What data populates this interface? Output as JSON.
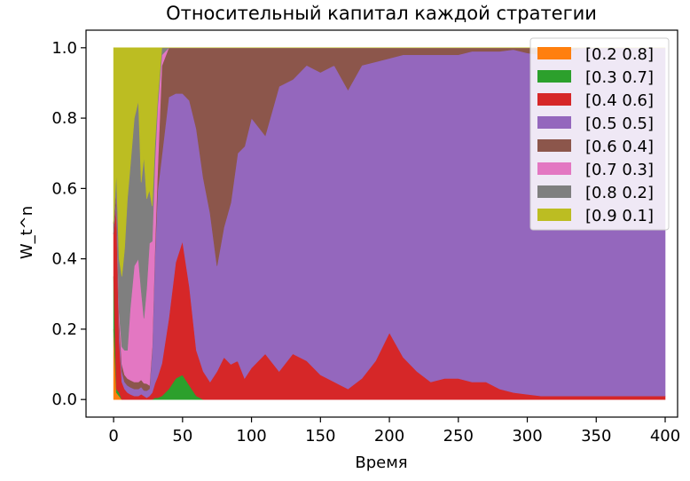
{
  "chart_data": {
    "type": "area",
    "stacked": true,
    "normalized": true,
    "title": "Относительный капитал каждой стратегии",
    "xlabel": "Время",
    "ylabel": "W_t^n",
    "xlim": [
      -20,
      409
    ],
    "ylim": [
      -0.05,
      1.05
    ],
    "xticks": [
      0,
      50,
      100,
      150,
      200,
      250,
      300,
      350,
      400
    ],
    "yticks": [
      0.0,
      0.2,
      0.4,
      0.6,
      0.8,
      1.0
    ],
    "ytick_labels": [
      "0.0",
      "0.2",
      "0.4",
      "0.6",
      "0.8",
      "1.0"
    ],
    "legend_position": "upper right",
    "x": [
      0,
      2,
      4,
      6,
      8,
      10,
      12,
      15,
      18,
      20,
      22,
      24,
      26,
      28,
      30,
      32,
      35,
      40,
      45,
      50,
      55,
      60,
      65,
      70,
      75,
      80,
      85,
      90,
      95,
      100,
      110,
      120,
      130,
      140,
      150,
      160,
      170,
      180,
      190,
      200,
      210,
      220,
      230,
      240,
      250,
      260,
      270,
      280,
      290,
      300,
      310,
      320,
      330,
      340,
      350,
      360,
      370,
      380,
      390,
      400
    ],
    "series": [
      {
        "name": "[0.2 0.8]",
        "color": "#ff7f0e",
        "values": [
          0.2,
          0.02,
          0.01,
          0,
          0,
          0,
          0,
          0,
          0,
          0,
          0,
          0,
          0,
          0,
          0,
          0,
          0,
          0,
          0,
          0,
          0,
          0,
          0,
          0,
          0,
          0,
          0,
          0,
          0,
          0,
          0,
          0,
          0,
          0,
          0,
          0,
          0,
          0,
          0,
          0,
          0,
          0,
          0,
          0,
          0,
          0,
          0,
          0,
          0,
          0,
          0,
          0,
          0,
          0,
          0,
          0,
          0,
          0,
          0,
          0
        ]
      },
      {
        "name": "[0.3 0.7]",
        "color": "#2ca02c",
        "values": [
          0.15,
          0.01,
          0.01,
          0,
          0,
          0,
          0,
          0,
          0,
          0,
          0,
          0,
          0,
          0,
          0.005,
          0.005,
          0.01,
          0.03,
          0.06,
          0.07,
          0.04,
          0.01,
          0,
          0,
          0,
          0,
          0,
          0,
          0,
          0,
          0,
          0,
          0,
          0,
          0,
          0,
          0,
          0,
          0,
          0,
          0,
          0,
          0,
          0,
          0,
          0,
          0,
          0,
          0,
          0,
          0,
          0,
          0,
          0,
          0,
          0,
          0,
          0,
          0,
          0
        ]
      },
      {
        "name": "[0.4 0.6]",
        "color": "#d62728",
        "values": [
          0.12,
          0.52,
          0.15,
          0.05,
          0.03,
          0.02,
          0.015,
          0.01,
          0.01,
          0.015,
          0.01,
          0.005,
          0.01,
          0.02,
          0.04,
          0.06,
          0.09,
          0.2,
          0.33,
          0.38,
          0.28,
          0.13,
          0.08,
          0.05,
          0.08,
          0.12,
          0.1,
          0.11,
          0.06,
          0.09,
          0.13,
          0.08,
          0.13,
          0.11,
          0.07,
          0.05,
          0.03,
          0.06,
          0.11,
          0.19,
          0.12,
          0.08,
          0.05,
          0.06,
          0.06,
          0.05,
          0.05,
          0.03,
          0.02,
          0.015,
          0.01,
          0.01,
          0.01,
          0.01,
          0.01,
          0.01,
          0.01,
          0.01,
          0.01,
          0.01
        ]
      },
      {
        "name": "[0.5 0.5]",
        "color": "#9467bd",
        "values": [
          0.0,
          0.02,
          0.03,
          0.03,
          0.02,
          0.02,
          0.02,
          0.02,
          0.02,
          0.02,
          0.015,
          0.02,
          0.02,
          0.12,
          0.36,
          0.53,
          0.58,
          0.63,
          0.48,
          0.42,
          0.53,
          0.63,
          0.55,
          0.48,
          0.3,
          0.37,
          0.46,
          0.59,
          0.66,
          0.71,
          0.62,
          0.81,
          0.78,
          0.84,
          0.86,
          0.9,
          0.85,
          0.89,
          0.85,
          0.78,
          0.86,
          0.9,
          0.93,
          0.92,
          0.92,
          0.94,
          0.94,
          0.96,
          0.975,
          0.975,
          0.97,
          0.98,
          0.98,
          0.99,
          0.99,
          0.99,
          0.99,
          0.99,
          0.99,
          0.99
        ]
      },
      {
        "name": "[0.6 0.4]",
        "color": "#8c564b",
        "values": [
          0.03,
          0.03,
          0.03,
          0.02,
          0.02,
          0.02,
          0.02,
          0.02,
          0.02,
          0.02,
          0.02,
          0.02,
          0.01,
          0.01,
          0.02,
          0.06,
          0.25,
          0.14,
          0.13,
          0.13,
          0.15,
          0.23,
          0.37,
          0.47,
          0.62,
          0.51,
          0.44,
          0.3,
          0.28,
          0.2,
          0.25,
          0.11,
          0.09,
          0.05,
          0.07,
          0.05,
          0.12,
          0.05,
          0.04,
          0.03,
          0.02,
          0.02,
          0.02,
          0.02,
          0.02,
          0.01,
          0.01,
          0.01,
          0.005,
          0.015,
          0.02,
          0.01,
          0.01,
          0,
          0,
          0,
          0,
          0,
          0,
          0
        ]
      },
      {
        "name": "[0.7 0.3]",
        "color": "#e377c2",
        "values": [
          0.0,
          0.0,
          0.02,
          0.05,
          0.07,
          0.08,
          0.2,
          0.33,
          0.35,
          0.25,
          0.18,
          0.27,
          0.4,
          0.3,
          0.24,
          0.18,
          0.03,
          0,
          0,
          0,
          0,
          0,
          0,
          0,
          0,
          0,
          0,
          0,
          0,
          0,
          0,
          0,
          0,
          0,
          0,
          0,
          0,
          0,
          0,
          0,
          0,
          0,
          0,
          0,
          0,
          0,
          0,
          0,
          0,
          0,
          0,
          0,
          0,
          0,
          0,
          0,
          0,
          0,
          0,
          0
        ]
      },
      {
        "name": "[0.8 0.2]",
        "color": "#7f7f7f",
        "values": [
          0.0,
          0.05,
          0.15,
          0.2,
          0.29,
          0.43,
          0.4,
          0.42,
          0.45,
          0.3,
          0.45,
          0.25,
          0.15,
          0.1,
          0.05,
          0.02,
          0.02,
          0,
          0,
          0,
          0,
          0,
          0,
          0,
          0,
          0,
          0,
          0,
          0,
          0,
          0,
          0,
          0,
          0,
          0,
          0,
          0,
          0,
          0,
          0,
          0,
          0,
          0,
          0,
          0,
          0,
          0,
          0,
          0,
          0,
          0,
          0,
          0,
          0,
          0,
          0,
          0,
          0,
          0,
          0
        ]
      },
      {
        "name": "[0.9 0.1]",
        "color": "#bcbd22",
        "values": [
          0.5,
          0.35,
          0.6,
          0.65,
          0.57,
          0.43,
          0.335,
          0.2,
          0.15,
          0.375,
          0.3,
          0.425,
          0.4,
          0.45,
          0.265,
          0.145,
          0.0,
          0,
          0,
          0,
          0,
          0,
          0,
          0,
          0,
          0,
          0,
          0,
          0,
          0,
          0,
          0,
          0,
          0,
          0,
          0,
          0,
          0,
          0,
          0,
          0,
          0,
          0,
          0,
          0,
          0,
          0,
          0,
          0,
          0,
          0,
          0,
          0,
          0,
          0,
          0,
          0,
          0,
          0,
          0
        ]
      }
    ]
  }
}
